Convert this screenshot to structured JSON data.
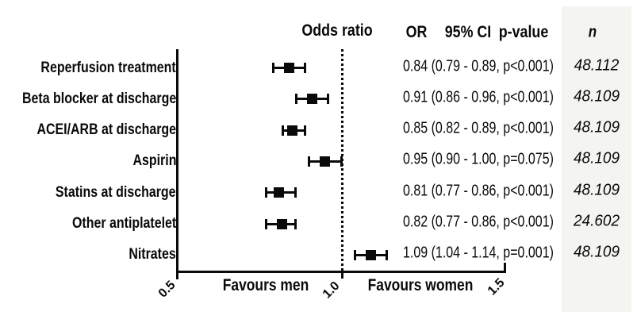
{
  "header": {
    "plot_title": "Odds ratio",
    "col_or": "OR",
    "col_ci": "95% CI",
    "col_p": "p-value",
    "col_n": "n"
  },
  "axis": {
    "tick_labels": [
      "0.5",
      "1.0",
      "1.5"
    ],
    "left_caption": "Favours men",
    "right_caption": "Favours women"
  },
  "colors": {
    "marker": "#0a0a0a",
    "n_column_bg": "#f4f4f1"
  },
  "chart_data": {
    "type": "forest",
    "x_axis": {
      "min": 0.5,
      "max": 1.5,
      "ticks": [
        0.5,
        1.0,
        1.5
      ],
      "reference_line": 1.0,
      "left_label": "Favours men",
      "right_label": "Favours women"
    },
    "columns": [
      "Odds ratio",
      "OR",
      "95% CI",
      "p-value",
      "n"
    ],
    "rows": [
      {
        "label": "Reperfusion treatment",
        "or": 0.84,
        "ci_low": 0.79,
        "ci_high": 0.89,
        "p": "p<0.001",
        "display": "0.84 (0.79 - 0.89, p<0.001)",
        "n": "48.112"
      },
      {
        "label": "Beta blocker at discharge",
        "or": 0.91,
        "ci_low": 0.86,
        "ci_high": 0.96,
        "p": "p<0.001",
        "display": "0.91 (0.86 - 0.96, p<0.001)",
        "n": "48.109"
      },
      {
        "label": "ACEI/ARB at discharge",
        "or": 0.85,
        "ci_low": 0.82,
        "ci_high": 0.89,
        "p": "p<0.001",
        "display": "0.85 (0.82 - 0.89, p<0.001)",
        "n": "48.109"
      },
      {
        "label": "Aspirin",
        "or": 0.95,
        "ci_low": 0.9,
        "ci_high": 1.0,
        "p": "p=0.075",
        "display": "0.95 (0.90 - 1.00, p=0.075)",
        "n": "48.109"
      },
      {
        "label": "Statins at discharge",
        "or": 0.81,
        "ci_low": 0.77,
        "ci_high": 0.86,
        "p": "p<0.001",
        "display": "0.81 (0.77 - 0.86, p<0.001)",
        "n": "48.109"
      },
      {
        "label": "Other antiplatelet",
        "or": 0.82,
        "ci_low": 0.77,
        "ci_high": 0.86,
        "p": "p<0.001",
        "display": "0.82 (0.77 - 0.86, p<0.001)",
        "n": "24.602"
      },
      {
        "label": "Nitrates",
        "or": 1.09,
        "ci_low": 1.04,
        "ci_high": 1.14,
        "p": "p=0.001",
        "display": "1.09 (1.04 - 1.14, p=0.001)",
        "n": "48.109"
      }
    ]
  }
}
